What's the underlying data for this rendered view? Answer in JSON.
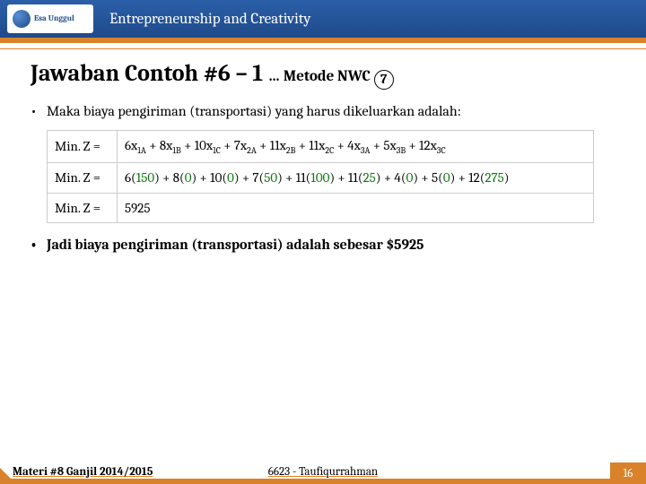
{
  "header": {
    "logo_text": "Esa Unggul",
    "title": "Entrepreneurship and Creativity"
  },
  "title_main": "Jawaban Contoh #6 – 1",
  "title_sub_prefix": "… Metode NWC",
  "title_circled": "7",
  "bullet1": "Maka biaya pengiriman (transportasi) yang harus dikeluarkan adalah:",
  "eq": {
    "lhs": "Min. Z  =",
    "row1": "6x<span class='subsc'>1A</span> + 8x<span class='subsc'>1B</span> + 10x<span class='subsc'>1C</span> + 7x<span class='subsc'>2A</span> + 11x<span class='subsc'>2B</span> + 11x<span class='subsc'>2C</span> + 4x<span class='subsc'>3A</span> + 5x<span class='subsc'>3B</span> + 12x<span class='subsc'>3C</span>",
    "row2": "6(<span class='grn'>150</span>) + 8(<span class='grn'>0</span>) + 10(<span class='grn'>0</span>) + 7(<span class='grn'>50</span>) + 11(<span class='grn'>100</span>) + 11(<span class='grn'>25</span>) + 4(<span class='grn'>0</span>) + 5(<span class='grn'>0</span>) + 12(<span class='grn'>275</span>)",
    "row3": "5925"
  },
  "bullet2": "Jadi biaya pengiriman (transportasi) adalah sebesar $5925",
  "footer": {
    "left": "Materi #8 Ganjil 2014/2015",
    "center": "6623 - Taufiqurrahman",
    "page": "16"
  }
}
